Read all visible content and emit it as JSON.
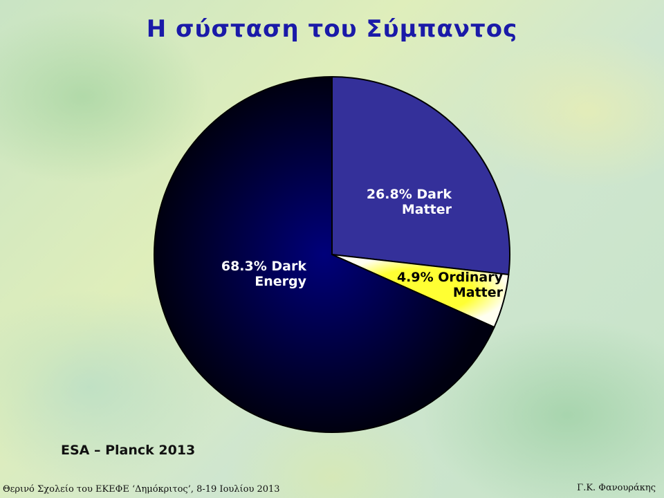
{
  "slide": {
    "title": "Η σύσταση του Σύμπαντος",
    "source": "ESA – Planck 2013",
    "footer_left": "Θερινό Σχολείο του ΕΚΕΦΕ ‘Δημόκριτος’, 8-19 Ιουλίου 2013",
    "footer_right": "Γ.Κ. Φανουράκης"
  },
  "chart_data": {
    "type": "pie",
    "title": "",
    "slices": [
      {
        "label_line1": "26.8% Dark",
        "label_line2": "Matter",
        "value": 26.8,
        "color": "#34309a",
        "label_color": "#ffffff"
      },
      {
        "label_line1": "4.9% Ordinary",
        "label_line2": "Matter",
        "value": 4.9,
        "color": "#ffff9c",
        "color_edge": "#ffff33",
        "label_color": "#000000"
      },
      {
        "label_line1": "68.3% Dark",
        "label_line2": "Energy",
        "value": 68.3,
        "color": "#050560",
        "color_edge": "#000000",
        "label_color": "#ffffff"
      }
    ],
    "start_angle_deg": 0,
    "direction": "clockwise",
    "outline_color": "#000000"
  }
}
